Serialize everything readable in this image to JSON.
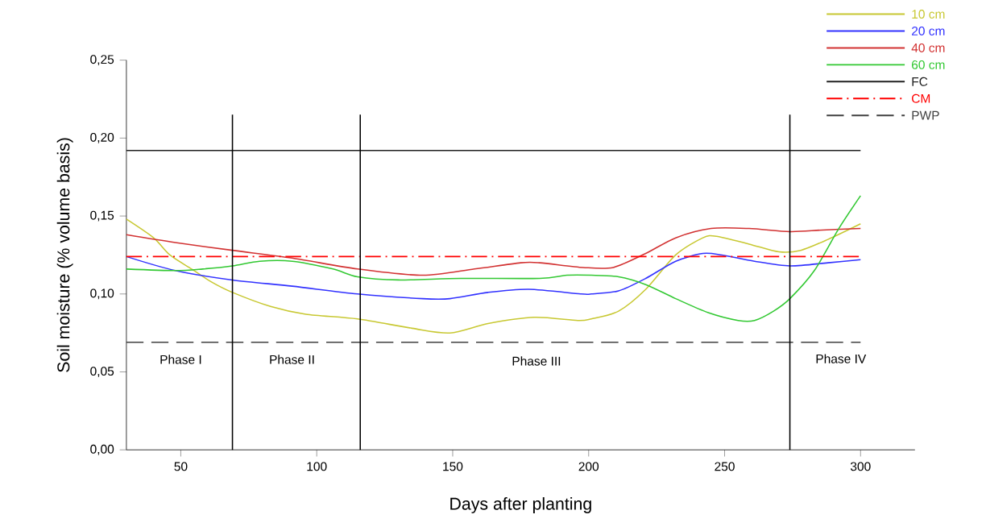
{
  "chart_data": {
    "type": "line",
    "xlabel": "Days after planting",
    "ylabel": "Soil moisture (% volume basis)",
    "xlim": [
      30,
      320
    ],
    "xticks": [
      50,
      100,
      150,
      200,
      250,
      300
    ],
    "ylim": [
      0,
      0.25
    ],
    "yticks": [
      {
        "value": 0,
        "label": "0,00"
      },
      {
        "value": 0.05,
        "label": "0,05"
      },
      {
        "value": 0.1,
        "label": "0,10"
      },
      {
        "value": 0.15,
        "label": "0,15"
      },
      {
        "value": 0.2,
        "label": "0,20"
      },
      {
        "value": 0.25,
        "label": "0,25"
      }
    ],
    "legend": "top right",
    "series": [
      {
        "name": "10 cm",
        "color": "#c8c832",
        "x": [
          30,
          40,
          46,
          54,
          61,
          69,
          83,
          96,
          115,
          135,
          149,
          163,
          180,
          196,
          201,
          211,
          221,
          232,
          242,
          247,
          259,
          270,
          278,
          288,
          300
        ],
        "values": [
          0.148,
          0.136,
          0.125,
          0.116,
          0.108,
          0.101,
          0.092,
          0.087,
          0.084,
          0.078,
          0.075,
          0.081,
          0.085,
          0.083,
          0.084,
          0.089,
          0.103,
          0.125,
          0.136,
          0.137,
          0.132,
          0.127,
          0.128,
          0.135,
          0.145
        ]
      },
      {
        "name": "20 cm",
        "color": "#3232ff",
        "x": [
          30,
          48,
          69,
          91,
          115,
          139,
          149,
          163,
          178,
          197,
          201,
          211,
          221,
          232,
          242,
          249,
          261,
          274,
          288,
          300
        ],
        "values": [
          0.124,
          0.115,
          0.109,
          0.105,
          0.1,
          0.097,
          0.097,
          0.101,
          0.103,
          0.1,
          0.1,
          0.102,
          0.11,
          0.121,
          0.126,
          0.125,
          0.121,
          0.118,
          0.12,
          0.122
        ]
      },
      {
        "name": "40 cm",
        "color": "#d23232",
        "x": [
          30,
          48,
          69,
          91,
          115,
          139,
          158,
          175,
          182,
          198,
          209,
          221,
          232,
          245,
          259,
          274,
          286,
          300
        ],
        "values": [
          0.138,
          0.133,
          0.128,
          0.123,
          0.116,
          0.112,
          0.116,
          0.12,
          0.12,
          0.117,
          0.117,
          0.126,
          0.136,
          0.142,
          0.142,
          0.14,
          0.141,
          0.142
        ]
      },
      {
        "name": "60 cm",
        "color": "#32c832",
        "x": [
          30,
          48,
          58,
          69,
          79,
          91,
          106,
          115,
          130,
          153,
          182,
          192,
          201,
          211,
          221,
          232,
          244,
          255,
          261,
          268,
          274,
          283,
          292,
          300
        ],
        "values": [
          0.116,
          0.115,
          0.116,
          0.118,
          0.121,
          0.121,
          0.116,
          0.111,
          0.109,
          0.11,
          0.11,
          0.112,
          0.112,
          0.111,
          0.106,
          0.097,
          0.088,
          0.083,
          0.083,
          0.089,
          0.097,
          0.115,
          0.142,
          0.163
        ]
      },
      {
        "name": "FC",
        "color": "#202020",
        "x": [
          30,
          300
        ],
        "values": [
          0.192,
          0.192
        ]
      },
      {
        "name": "CM",
        "color": "#ff0000",
        "line_style": "dashdot",
        "x": [
          30,
          300
        ],
        "values": [
          0.124,
          0.124
        ]
      },
      {
        "name": "PWP",
        "color": "#404040",
        "line_style": "dashed",
        "x": [
          30,
          300
        ],
        "values": [
          0.069,
          0.069
        ]
      }
    ],
    "ref_lines": [
      {
        "axis": "x",
        "value": 69
      },
      {
        "axis": "x",
        "value": 116
      },
      {
        "axis": "x",
        "value": 274
      }
    ],
    "annotations": [
      "Phase I",
      "Phase II",
      "Phase III",
      "Phase IV"
    ]
  }
}
